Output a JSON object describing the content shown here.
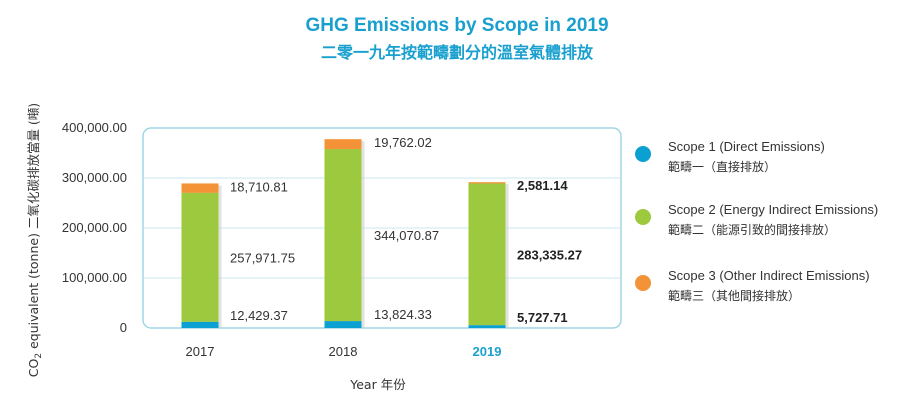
{
  "chart_data": {
    "type": "bar",
    "stacked": true,
    "title": "GHG Emissions by Scope in 2019",
    "subtitle": "二零一九年按範疇劃分的溫室氣體排放",
    "xlabel": "Year  年份",
    "ylabel_main": "CO",
    "ylabel_sub": "2",
    "ylabel_rest": " equivalent (tonne)  二氧化碳排放當量 (噸)",
    "categories": [
      "2017",
      "2018",
      "2019"
    ],
    "highlight_category": "2019",
    "yticks": [
      "0",
      "100,000.00",
      "200,000.00",
      "300,000.00",
      "400,000.00"
    ],
    "ylim": [
      0,
      400000
    ],
    "grid": true,
    "legend_position": "right",
    "series": [
      {
        "name": "Scope 1 (Direct Emissions)",
        "name_zh": "範疇一（直接排放）",
        "color": "#0aa0d2",
        "values": [
          12429.37,
          13824.33,
          5727.71
        ],
        "labels": [
          "12,429.37",
          "13,824.33",
          "5,727.71"
        ]
      },
      {
        "name": "Scope 2 (Energy Indirect Emissions)",
        "name_zh": "範疇二（能源引致的間接排放）",
        "color": "#9cc93d",
        "values": [
          257971.75,
          344070.87,
          283335.27
        ],
        "labels": [
          "257,971.75",
          "344,070.87",
          "283,335.27"
        ]
      },
      {
        "name": "Scope 3 (Other Indirect Emissions)",
        "name_zh": "範疇三（其他間接排放）",
        "color": "#f39237",
        "values": [
          18710.81,
          19762.02,
          2581.14
        ],
        "labels": [
          "18,710.81",
          "19,762.02",
          "2,581.14"
        ]
      }
    ]
  }
}
